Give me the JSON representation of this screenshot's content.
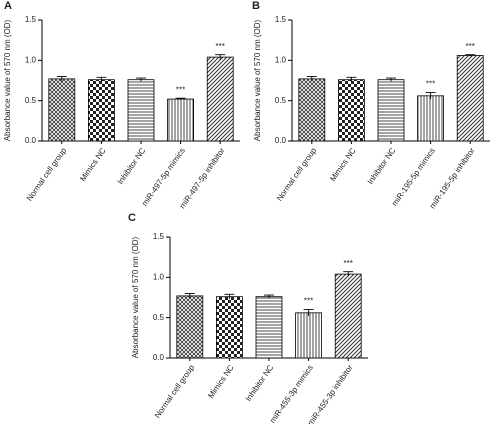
{
  "chart_data": [
    {
      "type": "bar",
      "panel": "A",
      "ylabel": "Absorbance value of 570 nm (OD)",
      "categories": [
        "Normal cell group",
        "Mimics NC",
        "Inhibitor NC",
        "miR-497-5p mimics",
        "miR-497-5p inhibitor"
      ],
      "values": [
        0.77,
        0.76,
        0.76,
        0.52,
        1.04
      ],
      "errors": [
        0.03,
        0.03,
        0.02,
        0.01,
        0.03
      ],
      "significance": [
        null,
        null,
        null,
        "***",
        "***"
      ],
      "patterns": [
        "crosshatch",
        "checker",
        "horizontal",
        "vertical",
        "diagonal"
      ],
      "ylim": [
        0,
        1.5
      ],
      "yticks": [
        {
          "value": 0,
          "label": "0.0"
        },
        0.5,
        {
          "value": 1,
          "label": "1.0"
        },
        1.5
      ]
    },
    {
      "type": "bar",
      "panel": "B",
      "ylabel": "Absorbance value of 570 nm (OD)",
      "categories": [
        "Normal cell group",
        "Mimics NC",
        "Inhibitor NC",
        "miR-195-5p mimics",
        "miR-195-5p inhibitor"
      ],
      "values": [
        0.77,
        0.76,
        0.76,
        0.56,
        1.06
      ],
      "errors": [
        0.03,
        0.03,
        0.02,
        0.04,
        0.01
      ],
      "significance": [
        null,
        null,
        null,
        "***",
        "***"
      ],
      "patterns": [
        "crosshatch",
        "checker",
        "horizontal",
        "vertical",
        "diagonal"
      ],
      "ylim": [
        0,
        1.5
      ],
      "yticks": [
        {
          "value": 0,
          "label": "0.0"
        },
        0.5,
        {
          "value": 1,
          "label": "1.0"
        },
        1.5
      ]
    },
    {
      "type": "bar",
      "panel": "C",
      "ylabel": "Absorbance value of 570 nm (OD)",
      "categories": [
        "Normal cell group",
        "Mimics NC",
        "Inhibitor NC",
        "miR-455-3p mimics",
        "miR-455-3p inhibitor"
      ],
      "values": [
        0.77,
        0.76,
        0.76,
        0.56,
        1.04
      ],
      "errors": [
        0.03,
        0.03,
        0.02,
        0.04,
        0.03
      ],
      "significance": [
        null,
        null,
        null,
        "***",
        "***"
      ],
      "patterns": [
        "crosshatch",
        "checker",
        "horizontal",
        "vertical",
        "diagonal"
      ],
      "ylim": [
        0,
        1.5
      ],
      "yticks": [
        {
          "value": 0,
          "label": "0.0"
        },
        0.5,
        {
          "value": 1,
          "label": "1.0"
        },
        1.5
      ]
    }
  ]
}
